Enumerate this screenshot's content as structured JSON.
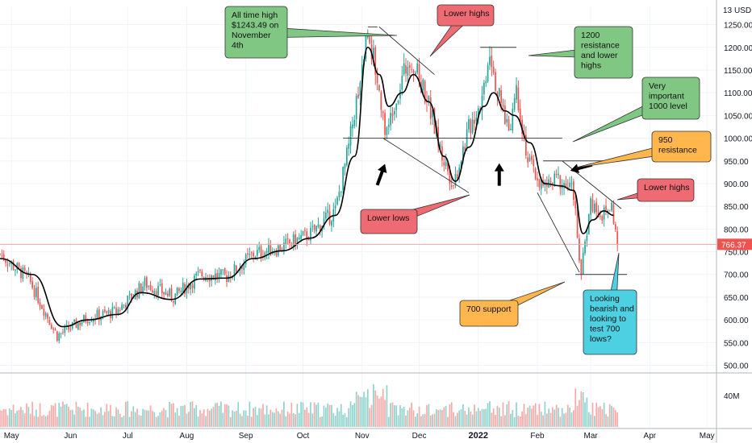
{
  "chart_data": {
    "type": "candlestick",
    "currency": "USD",
    "top_label": "13",
    "last_price": "766.37",
    "y_ticks": [
      "1250.00",
      "1200.00",
      "1150.00",
      "1100.00",
      "1050.00",
      "1000.00",
      "950.00",
      "900.00",
      "850.00",
      "800.00",
      "750.00",
      "700.00",
      "650.00",
      "600.00",
      "550.00",
      "500.00"
    ],
    "y_range": [
      485,
      1290
    ],
    "volume_tick": "40M",
    "x_ticks": [
      "May",
      "Jun",
      "Jul",
      "Aug",
      "Sep",
      "Oct",
      "Nov",
      "Dec",
      "2022",
      "Feb",
      "Mar",
      "Apr",
      "May"
    ],
    "x_range": [
      "2021-04-25",
      "2022-05-06"
    ],
    "price_path": [
      [
        "2021-04-25",
        745
      ],
      [
        "2021-05-10",
        690
      ],
      [
        "2021-05-25",
        565
      ],
      [
        "2021-06-10",
        605
      ],
      [
        "2021-06-25",
        618
      ],
      [
        "2021-07-10",
        680
      ],
      [
        "2021-07-25",
        650
      ],
      [
        "2021-08-08",
        700
      ],
      [
        "2021-08-22",
        695
      ],
      [
        "2021-09-05",
        745
      ],
      [
        "2021-09-20",
        760
      ],
      [
        "2021-10-05",
        790
      ],
      [
        "2021-10-18",
        840
      ],
      [
        "2021-10-25",
        980
      ],
      [
        "2021-11-01",
        1160
      ],
      [
        "2021-11-04",
        1243.49
      ],
      [
        "2021-11-09",
        1130
      ],
      [
        "2021-11-14",
        1005
      ],
      [
        "2021-11-18",
        1080
      ],
      [
        "2021-11-26",
        1180
      ],
      [
        "2021-12-05",
        1090
      ],
      [
        "2021-12-13",
        960
      ],
      [
        "2021-12-19",
        900
      ],
      [
        "2021-12-27",
        1020
      ],
      [
        "2022-01-03",
        1090
      ],
      [
        "2022-01-07",
        1200
      ],
      [
        "2022-01-11",
        1100
      ],
      [
        "2022-01-17",
        1020
      ],
      [
        "2022-01-21",
        1110
      ],
      [
        "2022-01-27",
        950
      ],
      [
        "2022-02-04",
        890
      ],
      [
        "2022-02-12",
        910
      ],
      [
        "2022-02-20",
        880
      ],
      [
        "2022-02-24",
        700
      ],
      [
        "2022-03-01",
        860
      ],
      [
        "2022-03-07",
        830
      ],
      [
        "2022-03-12",
        850
      ],
      [
        "2022-03-15",
        766.37
      ]
    ],
    "ma_path": [
      [
        "2021-04-25",
        735
      ],
      [
        "2021-05-12",
        700
      ],
      [
        "2021-05-28",
        585
      ],
      [
        "2021-06-10",
        600
      ],
      [
        "2021-06-26",
        612
      ],
      [
        "2021-07-08",
        660
      ],
      [
        "2021-07-24",
        645
      ],
      [
        "2021-08-08",
        690
      ],
      [
        "2021-08-22",
        692
      ],
      [
        "2021-09-05",
        735
      ],
      [
        "2021-09-20",
        752
      ],
      [
        "2021-10-05",
        780
      ],
      [
        "2021-10-18",
        830
      ],
      [
        "2021-10-28",
        960
      ],
      [
        "2021-11-04",
        1200
      ],
      [
        "2021-11-10",
        1140
      ],
      [
        "2021-11-15",
        1070
      ],
      [
        "2021-11-22",
        1100
      ],
      [
        "2021-11-28",
        1140
      ],
      [
        "2021-12-06",
        1080
      ],
      [
        "2021-12-14",
        960
      ],
      [
        "2021-12-20",
        905
      ],
      [
        "2021-12-27",
        980
      ],
      [
        "2022-01-04",
        1070
      ],
      [
        "2022-01-09",
        1100
      ],
      [
        "2022-01-15",
        1060
      ],
      [
        "2022-01-20",
        1050
      ],
      [
        "2022-01-28",
        990
      ],
      [
        "2022-02-05",
        900
      ],
      [
        "2022-02-13",
        895
      ],
      [
        "2022-02-20",
        885
      ],
      [
        "2022-02-25",
        790
      ],
      [
        "2022-03-02",
        820
      ],
      [
        "2022-03-08",
        840
      ],
      [
        "2022-03-13",
        830
      ]
    ],
    "annotations": [
      {
        "id": "ath",
        "text": "All time high $1243.49 on November 4th",
        "lines": [
          "All time high",
          "$1243.49 on",
          "November",
          "4th"
        ],
        "color": "#81c784"
      },
      {
        "id": "lower-highs-top",
        "text": "Lower highs",
        "lines": [
          "Lower highs"
        ],
        "color": "#ef6b73"
      },
      {
        "id": "r1200",
        "text": "1200 resistance and lower highs",
        "lines": [
          "1200",
          "resistance",
          "and lower",
          "highs"
        ],
        "color": "#81c784"
      },
      {
        "id": "l1000",
        "text": "Very important 1000 level",
        "lines": [
          "Very",
          "important",
          "1000 level"
        ],
        "color": "#81c784"
      },
      {
        "id": "r950",
        "text": "950 resistance",
        "lines": [
          "950",
          "resistance"
        ],
        "color": "#ffb74d"
      },
      {
        "id": "lower-highs-right",
        "text": "Lower highs",
        "lines": [
          "Lower highs"
        ],
        "color": "#ef6b73"
      },
      {
        "id": "lower-lows",
        "text": "Lower lows",
        "lines": [
          "Lower lows"
        ],
        "color": "#ef6b73"
      },
      {
        "id": "s700",
        "text": "700 support",
        "lines": [
          "700 support"
        ],
        "color": "#ffb74d"
      },
      {
        "id": "bearish",
        "text": "Looking bearish and looking to test 700 lows?",
        "lines": [
          "Looking",
          "bearish and",
          "looking to",
          "test 700",
          "lows?"
        ],
        "color": "#4dd0e1"
      }
    ],
    "colors": {
      "up": "#26a69a",
      "down": "#ef5350",
      "ma": "#000000",
      "last_price": "#ef5350",
      "grid": "#f0f3fa",
      "axis_text": "#131722"
    }
  }
}
